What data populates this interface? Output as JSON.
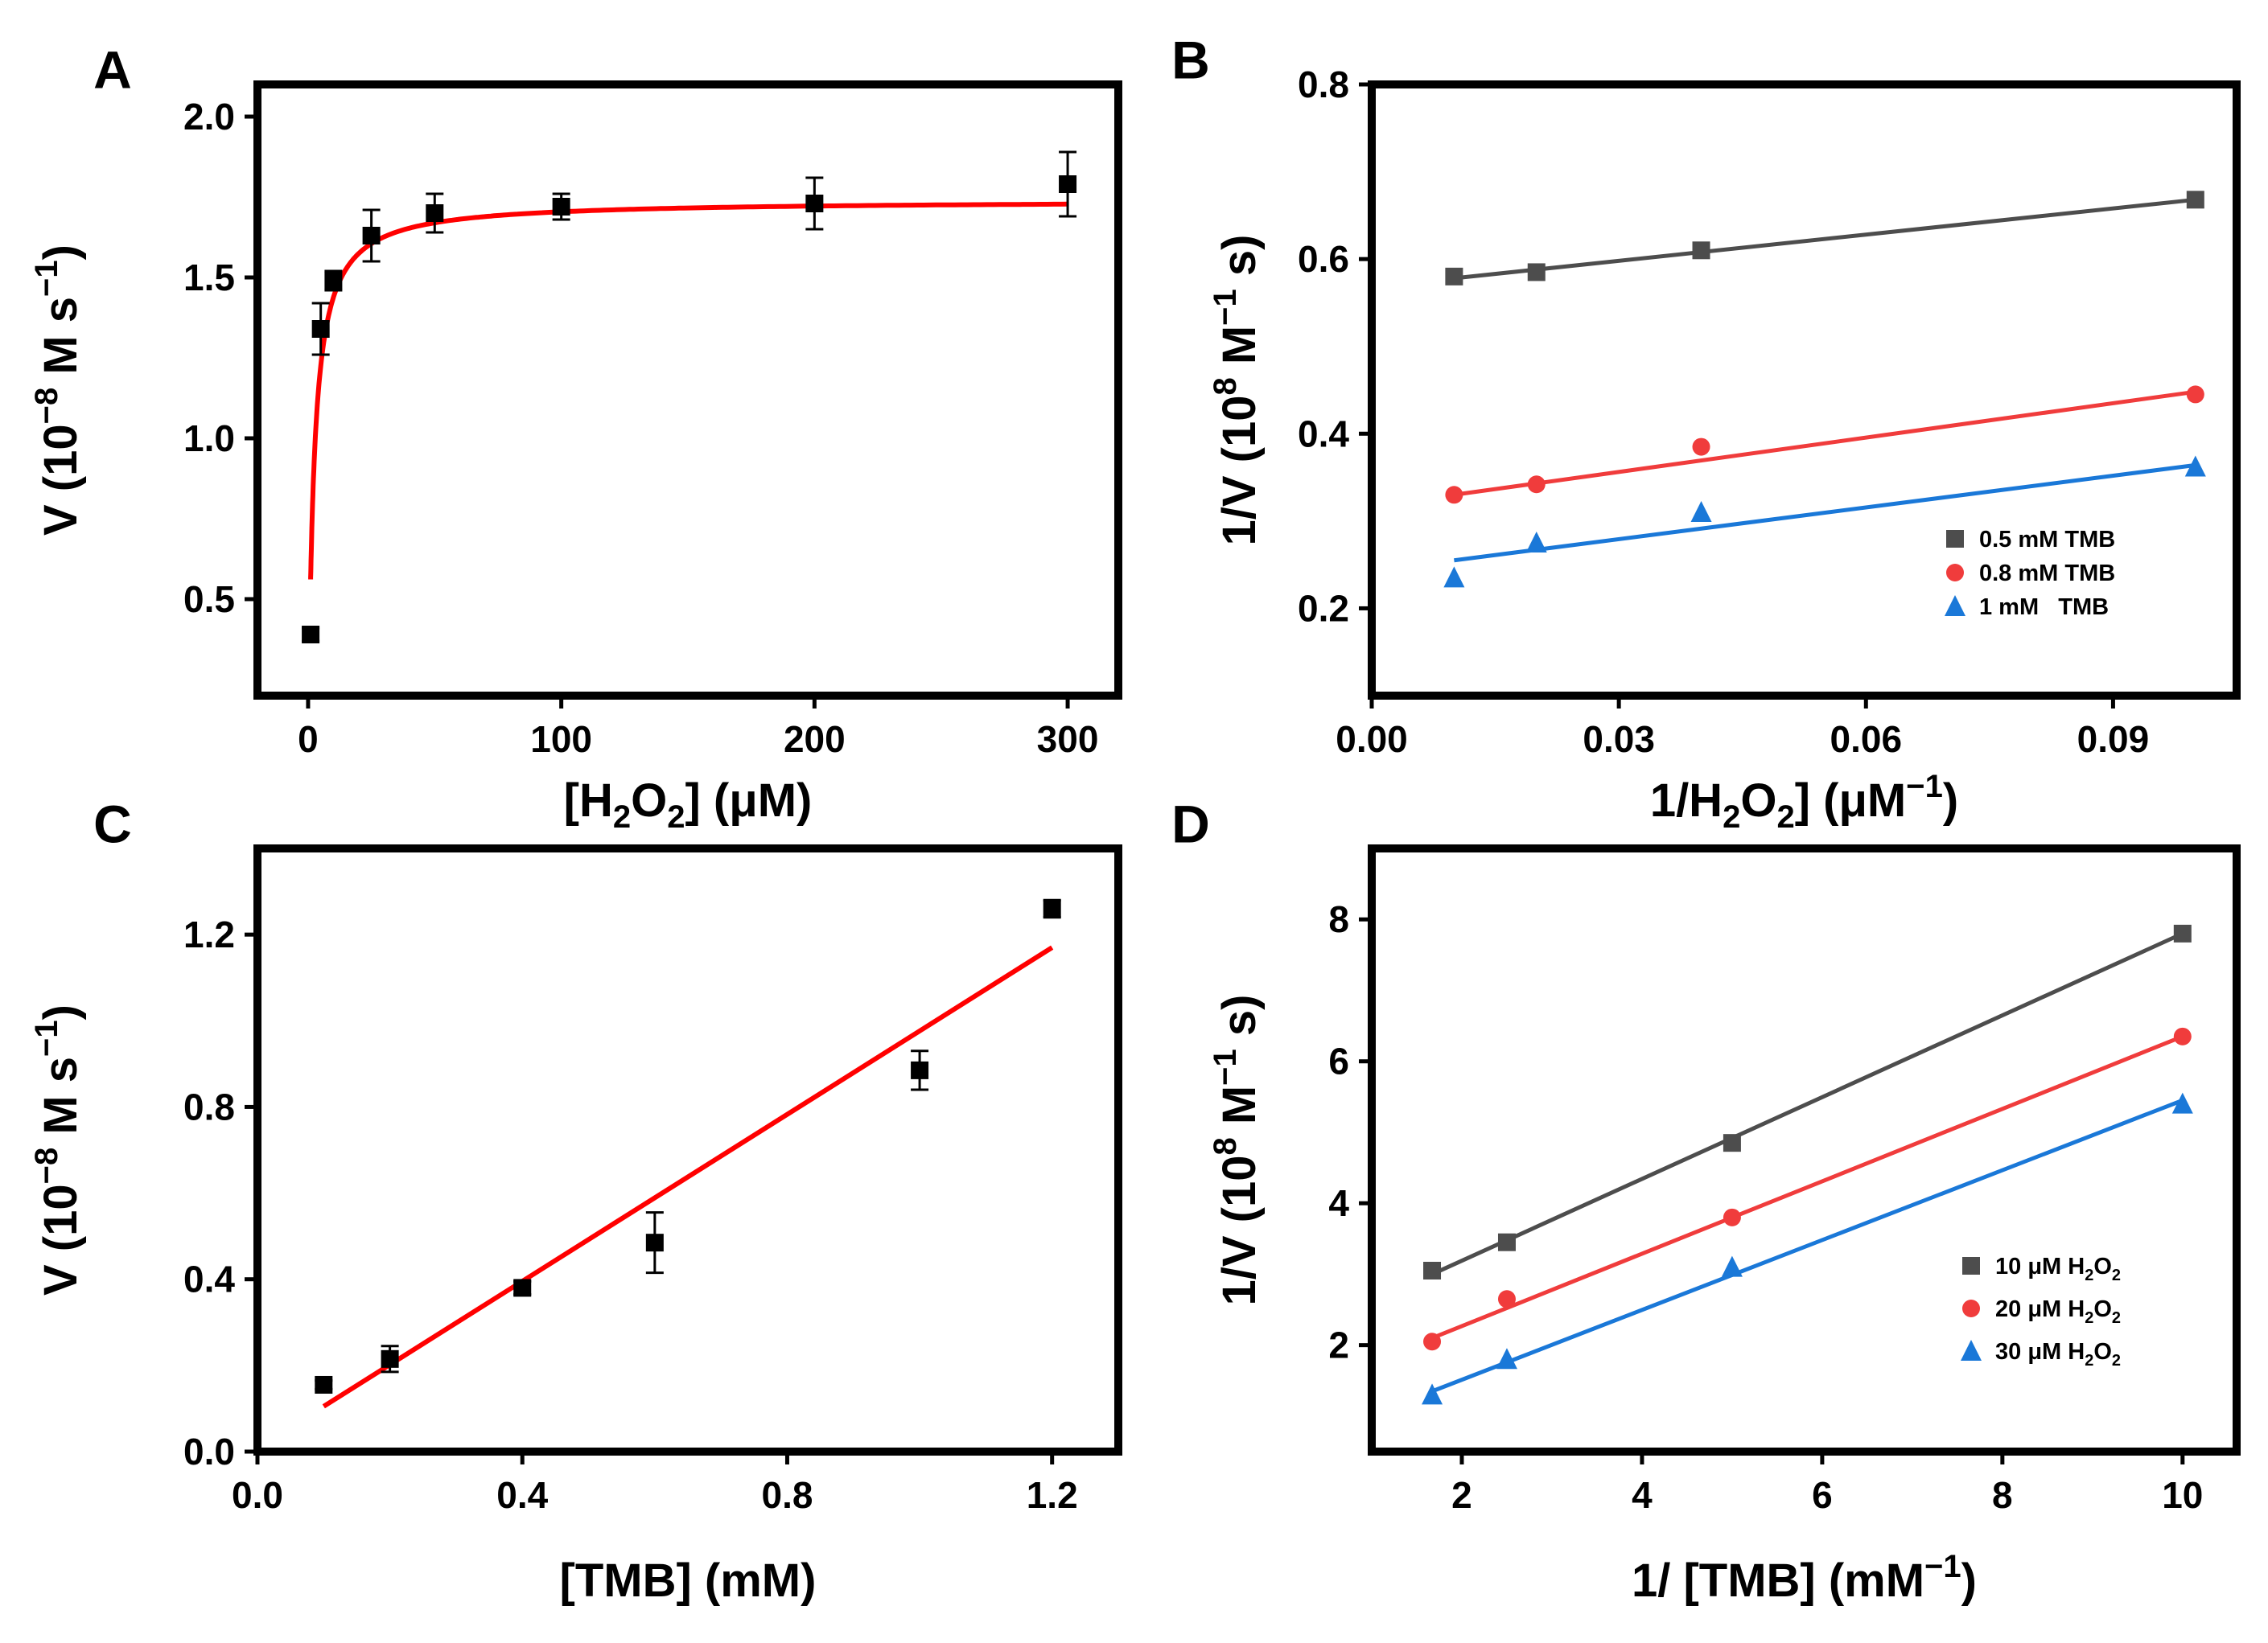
{
  "chart_data": [
    {
      "panel": "A",
      "type": "scatter",
      "xlabel": {
        "pre": "[H",
        "sub1": "2",
        "mid": "O",
        "sub2": "2",
        "post": "] (μM)"
      },
      "ylabel": {
        "pre": "V (10",
        "sup1": "−8",
        "mid": " M s",
        "sup2": "−1",
        "post": ")"
      },
      "xlim": [
        -20,
        320
      ],
      "ylim": [
        0.2,
        2.1
      ],
      "xticks": [
        0,
        100,
        200,
        300
      ],
      "xtick_labels": [
        "0",
        "100",
        "200",
        "300"
      ],
      "yticks": [
        0.5,
        1.0,
        1.5,
        2.0
      ],
      "ytick_labels": [
        "0.5",
        "1.0",
        "1.5",
        "2.0"
      ],
      "series": [
        {
          "marker": "square",
          "color": "#000000",
          "x": [
            1,
            5,
            10,
            25,
            50,
            100,
            200,
            300
          ],
          "y": [
            0.39,
            1.34,
            1.49,
            1.63,
            1.7,
            1.72,
            1.73,
            1.79
          ],
          "yerr": [
            0.02,
            0.08,
            0.03,
            0.08,
            0.06,
            0.04,
            0.08,
            0.1
          ]
        }
      ],
      "fit": {
        "kind": "michaelis-menten",
        "color": "#ff0000",
        "vmax": 1.74,
        "km": 2.1,
        "x0": 1.0,
        "x1": 300
      }
    },
    {
      "panel": "B",
      "type": "scatter",
      "xlabel": {
        "pre": "1/H",
        "sub1": "2",
        "mid": "O",
        "sub2": "2",
        "post": "] (μM",
        "sup": "−1",
        "end": ")"
      },
      "ylabel": {
        "pre": "1/V (10",
        "sup1": "8",
        "mid": " M",
        "sup2": "−1",
        "post": " s)"
      },
      "xlim": [
        0.0,
        0.105
      ],
      "ylim": [
        0.1,
        0.8
      ],
      "xticks": [
        0.0,
        0.03,
        0.06,
        0.09
      ],
      "xtick_labels": [
        "0.00",
        "0.03",
        "0.06",
        "0.09"
      ],
      "yticks": [
        0.2,
        0.4,
        0.6,
        0.8
      ],
      "ytick_labels": [
        "0.2",
        "0.4",
        "0.6",
        "0.8"
      ],
      "series": [
        {
          "name": "0.5 mM TMB",
          "marker": "square",
          "color": "#4d4d4d",
          "x": [
            0.01,
            0.02,
            0.04,
            0.1
          ],
          "y": [
            0.58,
            0.585,
            0.61,
            0.668
          ],
          "fit": [
            [
              0.01,
              0.578
            ],
            [
              0.1,
              0.668
            ]
          ]
        },
        {
          "name": "0.8 mM TMB",
          "marker": "circle",
          "color": "#f03c3c",
          "x": [
            0.01,
            0.02,
            0.04,
            0.1
          ],
          "y": [
            0.33,
            0.342,
            0.385,
            0.445
          ],
          "fit": [
            [
              0.01,
              0.33
            ],
            [
              0.1,
              0.448
            ]
          ]
        },
        {
          "name": "1 mM   TMB",
          "marker": "triangle",
          "color": "#1a78d8",
          "x": [
            0.01,
            0.02,
            0.04,
            0.1
          ],
          "y": [
            0.235,
            0.275,
            0.31,
            0.362
          ],
          "fit": [
            [
              0.01,
              0.255
            ],
            [
              0.1,
              0.364
            ]
          ]
        }
      ],
      "legend": "lower-right"
    },
    {
      "panel": "C",
      "type": "scatter",
      "xlabel": {
        "pre": "[TMB] (mM)"
      },
      "ylabel": {
        "pre": "V (10",
        "sup1": "−8",
        "mid": " M s",
        "sup2": "−1",
        "post": ")"
      },
      "xlim": [
        0.0,
        1.3
      ],
      "ylim": [
        0.0,
        1.4
      ],
      "xticks": [
        0.0,
        0.4,
        0.8,
        1.2
      ],
      "xtick_labels": [
        "0.0",
        "0.4",
        "0.8",
        "1.2"
      ],
      "yticks": [
        0.0,
        0.4,
        0.8,
        1.2
      ],
      "ytick_labels": [
        "0.0",
        "0.4",
        "0.8",
        "1.2"
      ],
      "series": [
        {
          "marker": "square",
          "color": "#000000",
          "x": [
            0.1,
            0.2,
            0.4,
            0.6,
            1.0,
            1.2
          ],
          "y": [
            0.155,
            0.215,
            0.38,
            0.485,
            0.885,
            1.26
          ],
          "yerr": [
            0.01,
            0.03,
            0.015,
            0.07,
            0.045,
            0.02
          ]
        }
      ],
      "fit": {
        "kind": "linear",
        "color": "#ff0000",
        "points": [
          [
            0.1,
            0.105
          ],
          [
            1.2,
            1.17
          ]
        ]
      }
    },
    {
      "panel": "D",
      "type": "scatter",
      "xlabel": {
        "pre": "1/ [TMB] (mM",
        "sup": "−1",
        "end": ")"
      },
      "ylabel": {
        "pre": "1/V (10",
        "sup1": "8",
        "mid": " M",
        "sup2": "−1",
        "post": " s)"
      },
      "xlim": [
        1.0,
        10.6
      ],
      "ylim": [
        0.5,
        9.0
      ],
      "xticks": [
        2,
        4,
        6,
        8,
        10
      ],
      "xtick_labels": [
        "2",
        "4",
        "6",
        "8",
        "10"
      ],
      "yticks": [
        2,
        4,
        6,
        8
      ],
      "ytick_labels": [
        "2",
        "4",
        "6",
        "8"
      ],
      "series": [
        {
          "name": {
            "pre": "10 μM H",
            "sub1": "2",
            "mid": "O",
            "sub2": "2"
          },
          "marker": "square",
          "color": "#4d4d4d",
          "x": [
            1.67,
            2.5,
            5,
            10
          ],
          "y": [
            3.05,
            3.45,
            4.85,
            7.8
          ],
          "fit": [
            [
              1.67,
              3.0
            ],
            [
              10,
              7.8
            ]
          ]
        },
        {
          "name": {
            "pre": "20 μM H",
            "sub1": "2",
            "mid": "O",
            "sub2": "2"
          },
          "marker": "circle",
          "color": "#f03c3c",
          "x": [
            1.67,
            2.5,
            5,
            10
          ],
          "y": [
            2.05,
            2.65,
            3.8,
            6.35
          ],
          "fit": [
            [
              1.67,
              2.1
            ],
            [
              10,
              6.35
            ]
          ]
        },
        {
          "name": {
            "pre": "30 μM H",
            "sub1": "2",
            "mid": "O",
            "sub2": "2"
          },
          "marker": "triangle",
          "color": "#1a78d8",
          "x": [
            1.67,
            2.5,
            5,
            10
          ],
          "y": [
            1.3,
            1.8,
            3.1,
            5.4
          ],
          "fit": [
            [
              1.67,
              1.35
            ],
            [
              10,
              5.45
            ]
          ]
        }
      ],
      "legend": "lower-right"
    }
  ]
}
